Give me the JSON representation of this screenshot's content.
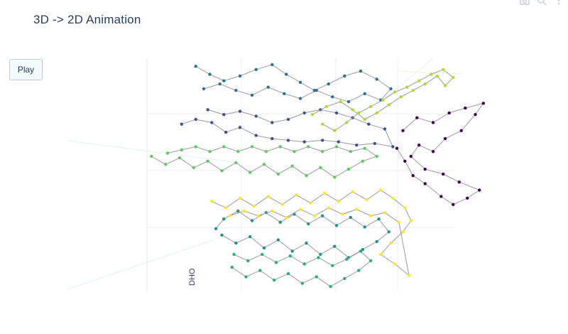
{
  "figure": {
    "title": "3D -> 2D Animation"
  },
  "controls": {
    "play_label": "Play"
  },
  "modebar": {
    "icons": [
      "camera-icon",
      "zoom-icon",
      "more-icon"
    ]
  },
  "chart_data": {
    "type": "scatter",
    "mode": "lines+markers",
    "projection": "3d",
    "colorscale": "viridis",
    "grid": true,
    "axis_labels": {
      "partial_visible": "DHO"
    },
    "series": [
      {
        "color": "#440154",
        "points": [
          [
            5.5,
            5.5
          ],
          [
            6.2,
            6.3
          ],
          [
            7.0,
            6.0
          ],
          [
            7.8,
            6.6
          ],
          [
            8.6,
            6.9
          ],
          [
            9.5,
            7.2
          ],
          [
            9.1,
            6.5
          ],
          [
            8.4,
            5.5
          ],
          [
            7.6,
            5.0
          ],
          [
            7.0,
            4.2
          ],
          [
            6.3,
            4.6
          ],
          [
            5.9,
            3.9
          ],
          [
            6.6,
            3.1
          ],
          [
            7.5,
            2.8
          ],
          [
            8.3,
            2.3
          ],
          [
            9.3,
            1.8
          ],
          [
            8.7,
            1.3
          ],
          [
            8.0,
            0.9
          ],
          [
            7.4,
            1.4
          ],
          [
            6.6,
            2.2
          ],
          [
            6.0,
            2.7
          ],
          [
            5.6,
            3.6
          ],
          [
            5.2,
            4.4
          ]
        ]
      },
      {
        "color": "#3b528b",
        "points": [
          [
            -5.5,
            5.9
          ],
          [
            -4.8,
            6.2
          ],
          [
            -4.0,
            6.0
          ],
          [
            -3.3,
            5.4
          ],
          [
            -2.6,
            5.7
          ],
          [
            -1.8,
            5.2
          ],
          [
            -1.0,
            5.0
          ],
          [
            -0.2,
            4.9
          ],
          [
            0.6,
            4.8
          ],
          [
            1.5,
            4.9
          ],
          [
            2.3,
            4.8
          ],
          [
            3.2,
            4.6
          ],
          [
            4.1,
            4.7
          ],
          [
            5.0,
            4.5
          ],
          [
            4.6,
            5.6
          ],
          [
            3.8,
            5.9
          ],
          [
            3.0,
            6.3
          ],
          [
            2.2,
            6.6
          ],
          [
            1.4,
            6.8
          ],
          [
            0.6,
            6.6
          ],
          [
            -0.2,
            6.2
          ],
          [
            -1.0,
            6.0
          ],
          [
            -1.8,
            6.4
          ],
          [
            -2.6,
            6.7
          ],
          [
            -3.4,
            6.5
          ],
          [
            -4.2,
            6.8
          ]
        ]
      },
      {
        "color": "#2c728e",
        "points": [
          [
            -4.8,
            9.5
          ],
          [
            -4.1,
            9.0
          ],
          [
            -3.4,
            8.6
          ],
          [
            -2.6,
            8.9
          ],
          [
            -1.8,
            9.3
          ],
          [
            -1.0,
            9.6
          ],
          [
            -0.3,
            9.0
          ],
          [
            0.4,
            8.5
          ],
          [
            1.1,
            8.0
          ],
          [
            1.8,
            8.4
          ],
          [
            2.6,
            8.9
          ],
          [
            3.4,
            9.2
          ],
          [
            4.2,
            8.7
          ],
          [
            4.9,
            8.1
          ],
          [
            4.4,
            7.4
          ],
          [
            3.6,
            7.8
          ],
          [
            2.8,
            7.3
          ],
          [
            2.0,
            7.6
          ],
          [
            1.2,
            8.0
          ],
          [
            0.4,
            7.5
          ],
          [
            -0.4,
            7.8
          ],
          [
            -1.2,
            8.2
          ],
          [
            -2.0,
            7.7
          ],
          [
            -2.8,
            8.0
          ],
          [
            -3.6,
            8.4
          ],
          [
            -4.4,
            8.1
          ]
        ]
      },
      {
        "color": "#21918c",
        "points": [
          [
            -3.5,
            -1.0
          ],
          [
            -2.8,
            -1.5
          ],
          [
            -2.1,
            -1.1
          ],
          [
            -1.4,
            -1.8
          ],
          [
            -0.7,
            -1.3
          ],
          [
            0.0,
            -2.0
          ],
          [
            0.7,
            -1.5
          ],
          [
            1.4,
            -2.2
          ],
          [
            2.1,
            -1.7
          ],
          [
            2.8,
            -2.4
          ],
          [
            3.5,
            -1.9
          ],
          [
            4.2,
            -1.4
          ],
          [
            4.8,
            -0.8
          ],
          [
            4.3,
            0.0
          ],
          [
            3.6,
            -0.5
          ],
          [
            2.9,
            0.1
          ],
          [
            2.2,
            -0.4
          ],
          [
            1.5,
            0.2
          ],
          [
            0.8,
            -0.3
          ],
          [
            0.1,
            0.3
          ],
          [
            -0.6,
            -0.2
          ],
          [
            -1.3,
            0.4
          ],
          [
            -2.0,
            -0.1
          ],
          [
            -2.7,
            0.5
          ],
          [
            -3.4,
            0.0
          ],
          [
            -3.8,
            -0.6
          ]
        ]
      },
      {
        "color": "#27ad81",
        "points": [
          [
            -3.0,
            -3.0
          ],
          [
            -2.3,
            -3.6
          ],
          [
            -1.6,
            -3.2
          ],
          [
            -0.9,
            -3.8
          ],
          [
            -0.2,
            -3.4
          ],
          [
            0.5,
            -4.0
          ],
          [
            1.2,
            -3.6
          ],
          [
            1.9,
            -4.2
          ],
          [
            2.6,
            -3.7
          ],
          [
            3.3,
            -3.2
          ],
          [
            3.9,
            -2.6
          ],
          [
            3.4,
            -2.0
          ],
          [
            2.7,
            -2.5
          ],
          [
            2.0,
            -2.9
          ],
          [
            1.3,
            -2.4
          ],
          [
            0.6,
            -2.8
          ],
          [
            -0.1,
            -2.3
          ],
          [
            -0.8,
            -2.7
          ],
          [
            -1.5,
            -2.2
          ],
          [
            -2.2,
            -2.6
          ],
          [
            -2.9,
            -2.2
          ]
        ]
      },
      {
        "color": "#5ec962",
        "points": [
          [
            -7.0,
            3.9
          ],
          [
            -6.3,
            3.4
          ],
          [
            -5.6,
            3.8
          ],
          [
            -4.9,
            3.2
          ],
          [
            -4.2,
            3.6
          ],
          [
            -3.5,
            3.0
          ],
          [
            -2.8,
            3.5
          ],
          [
            -2.1,
            2.9
          ],
          [
            -1.4,
            3.4
          ],
          [
            -0.7,
            2.8
          ],
          [
            0.0,
            3.3
          ],
          [
            0.7,
            2.7
          ],
          [
            1.4,
            3.2
          ],
          [
            2.1,
            2.6
          ],
          [
            2.8,
            3.1
          ],
          [
            3.5,
            3.6
          ],
          [
            4.2,
            3.9
          ],
          [
            3.6,
            4.4
          ],
          [
            2.9,
            4.2
          ],
          [
            2.2,
            4.5
          ],
          [
            1.5,
            4.2
          ],
          [
            0.8,
            4.5
          ],
          [
            0.1,
            4.2
          ],
          [
            -0.6,
            4.5
          ],
          [
            -1.3,
            4.2
          ],
          [
            -2.0,
            4.5
          ],
          [
            -2.7,
            4.2
          ],
          [
            -3.4,
            4.5
          ],
          [
            -4.1,
            4.2
          ],
          [
            -4.8,
            4.5
          ],
          [
            -5.5,
            4.3
          ],
          [
            -6.2,
            4.1
          ]
        ]
      },
      {
        "color": "#addc30",
        "points": [
          [
            1.0,
            6.5
          ],
          [
            1.7,
            7.0
          ],
          [
            2.4,
            7.3
          ],
          [
            3.0,
            6.8
          ],
          [
            3.6,
            6.2
          ],
          [
            4.2,
            6.6
          ],
          [
            4.8,
            7.1
          ],
          [
            5.4,
            7.6
          ],
          [
            6.0,
            8.0
          ],
          [
            6.6,
            8.4
          ],
          [
            7.2,
            8.9
          ],
          [
            7.6,
            8.3
          ],
          [
            8.0,
            8.8
          ],
          [
            7.5,
            9.3
          ],
          [
            6.9,
            9.0
          ],
          [
            6.3,
            8.6
          ],
          [
            5.7,
            8.2
          ],
          [
            5.1,
            7.9
          ],
          [
            4.5,
            7.4
          ],
          [
            3.9,
            7.0
          ],
          [
            3.3,
            6.6
          ],
          [
            2.7,
            6.0
          ],
          [
            2.1,
            5.5
          ],
          [
            1.5,
            5.9
          ]
        ]
      },
      {
        "color": "#fde725",
        "points": [
          [
            -4.0,
            1.1
          ],
          [
            -3.3,
            0.7
          ],
          [
            -2.6,
            1.3
          ],
          [
            -1.9,
            0.8
          ],
          [
            -1.2,
            1.4
          ],
          [
            -0.5,
            0.9
          ],
          [
            0.2,
            1.5
          ],
          [
            0.9,
            1.0
          ],
          [
            1.6,
            1.6
          ],
          [
            2.3,
            1.1
          ],
          [
            3.0,
            1.7
          ],
          [
            3.7,
            1.2
          ],
          [
            4.4,
            1.8
          ],
          [
            5.0,
            1.3
          ],
          [
            5.6,
            0.7
          ],
          [
            5.9,
            -0.1
          ],
          [
            5.5,
            -0.8
          ],
          [
            4.9,
            -1.5
          ],
          [
            4.4,
            -2.2
          ],
          [
            5.1,
            -2.8
          ],
          [
            5.8,
            -3.5
          ],
          [
            5.3,
            -0.2
          ],
          [
            4.6,
            0.4
          ],
          [
            3.9,
            0.2
          ],
          [
            3.2,
            0.6
          ],
          [
            2.5,
            0.3
          ],
          [
            1.8,
            0.7
          ],
          [
            1.1,
            0.2
          ],
          [
            0.4,
            0.6
          ],
          [
            -0.3,
            0.1
          ],
          [
            -1.0,
            0.5
          ],
          [
            -1.7,
            0.2
          ],
          [
            -2.4,
            0.5
          ],
          [
            -3.1,
            0.2
          ]
        ]
      }
    ]
  }
}
